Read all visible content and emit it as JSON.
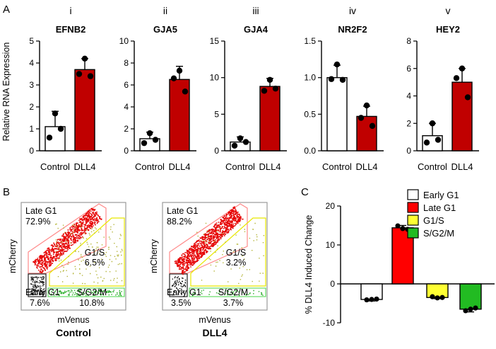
{
  "panel_labels": {
    "a": "A",
    "b": "B",
    "c": "C"
  },
  "colors": {
    "dll4": "#c00000",
    "control": "#ffffff",
    "early_g1": "#ffffff",
    "late_g1": "#ff0000",
    "g1s": "#ffff33",
    "s_g2m": "#22bb22"
  },
  "chart_data": [
    {
      "type": "bar",
      "roman": "i",
      "title": "EFNB2",
      "ylabel": "Relative RNA Expression",
      "categories": [
        "Control",
        "DLL4"
      ],
      "values": [
        1.1,
        3.7
      ],
      "errors": [
        0.7,
        0.5
      ],
      "points": [
        [
          1.7,
          0.6,
          1.0
        ],
        [
          4.2,
          3.5,
          3.4
        ]
      ],
      "ylim": [
        0,
        5
      ],
      "yticks": [
        0,
        1,
        2,
        3,
        4,
        5
      ],
      "ytick_labels": [
        "0",
        "1",
        "2",
        "3",
        "4",
        "5"
      ]
    },
    {
      "type": "bar",
      "roman": "ii",
      "title": "GJA5",
      "ylabel": "",
      "categories": [
        "Control",
        "DLL4"
      ],
      "values": [
        1.1,
        6.5
      ],
      "errors": [
        0.6,
        1.2
      ],
      "points": [
        [
          1.6,
          0.7,
          1.0
        ],
        [
          7.3,
          6.6,
          5.4
        ]
      ],
      "ylim": [
        0,
        10
      ],
      "yticks": [
        0,
        2,
        4,
        6,
        8,
        10
      ],
      "ytick_labels": [
        "0",
        "2",
        "4",
        "6",
        "8",
        "10"
      ]
    },
    {
      "type": "bar",
      "roman": "iii",
      "title": "GJA4",
      "ylabel": "",
      "categories": [
        "Control",
        "DLL4"
      ],
      "values": [
        1.2,
        8.8
      ],
      "errors": [
        0.7,
        1.1
      ],
      "points": [
        [
          1.7,
          0.7,
          1.2
        ],
        [
          9.7,
          8.2,
          8.5
        ]
      ],
      "ylim": [
        0,
        15
      ],
      "yticks": [
        0,
        5,
        10,
        15
      ],
      "ytick_labels": [
        "0",
        "5",
        "10",
        "15"
      ]
    },
    {
      "type": "bar",
      "roman": "iv",
      "title": "NR2F2",
      "ylabel": "",
      "categories": [
        "Control",
        "DLL4"
      ],
      "values": [
        1.0,
        0.47
      ],
      "errors": [
        0.17,
        0.14
      ],
      "points": [
        [
          1.18,
          0.98,
          0.97
        ],
        [
          0.62,
          0.45,
          0.34
        ]
      ],
      "ylim": [
        0,
        1.5
      ],
      "yticks": [
        0,
        0.5,
        1.0,
        1.5
      ],
      "ytick_labels": [
        "0.0",
        "0.5",
        "1.0",
        "1.5"
      ]
    },
    {
      "type": "bar",
      "roman": "v",
      "title": "HEY2",
      "ylabel": "",
      "categories": [
        "Control",
        "DLL4"
      ],
      "values": [
        1.1,
        5.0
      ],
      "errors": [
        0.9,
        1.0
      ],
      "points": [
        [
          2.0,
          0.6,
          0.8
        ],
        [
          6.0,
          5.3,
          3.9
        ]
      ],
      "ylim": [
        0,
        8
      ],
      "yticks": [
        0,
        2,
        4,
        6,
        8
      ],
      "ytick_labels": [
        "0",
        "2",
        "4",
        "6",
        "8"
      ]
    },
    {
      "type": "bar",
      "title": "",
      "ylabel": "% DLL4 Induced Change",
      "categories": [
        "Early G1",
        "Late G1",
        "G1/S",
        "S/G2/M"
      ],
      "values": [
        -4.0,
        14.4,
        -3.5,
        -6.5
      ],
      "errors": [
        0.4,
        0.6,
        0.3,
        0.7
      ],
      "points": [
        [
          -4.1,
          -4.0,
          -3.9
        ],
        [
          14.9,
          14.2,
          14.0
        ],
        [
          -3.3,
          -3.6,
          -3.5
        ],
        [
          -6.9,
          -6.5,
          -6.2
        ]
      ],
      "ylim": [
        -10,
        20
      ],
      "yticks": [
        -10,
        0,
        10,
        20
      ],
      "ytick_labels": [
        "-10",
        "0",
        "10",
        "20"
      ],
      "legend": [
        "Early G1",
        "Late G1",
        "G1/S",
        "S/G2/M"
      ],
      "legend_position": "top-right"
    }
  ],
  "flow_plots": [
    {
      "condition": "Control",
      "xlabel": "mVenus",
      "ylabel": "mCherry",
      "gates": [
        {
          "name": "Late G1",
          "percent": "72.9%"
        },
        {
          "name": "G1/S",
          "percent": "6.5%"
        },
        {
          "name": "Early G1",
          "percent": "7.6%"
        },
        {
          "name": "S/G2/M",
          "percent": "10.8%"
        }
      ]
    },
    {
      "condition": "DLL4",
      "xlabel": "mVenus",
      "ylabel": "mCherry",
      "gates": [
        {
          "name": "Late G1",
          "percent": "88.2%"
        },
        {
          "name": "G1/S",
          "percent": "3.2%"
        },
        {
          "name": "Early G1",
          "percent": "3.5%"
        },
        {
          "name": "S/G2/M",
          "percent": "3.7%"
        }
      ]
    }
  ]
}
